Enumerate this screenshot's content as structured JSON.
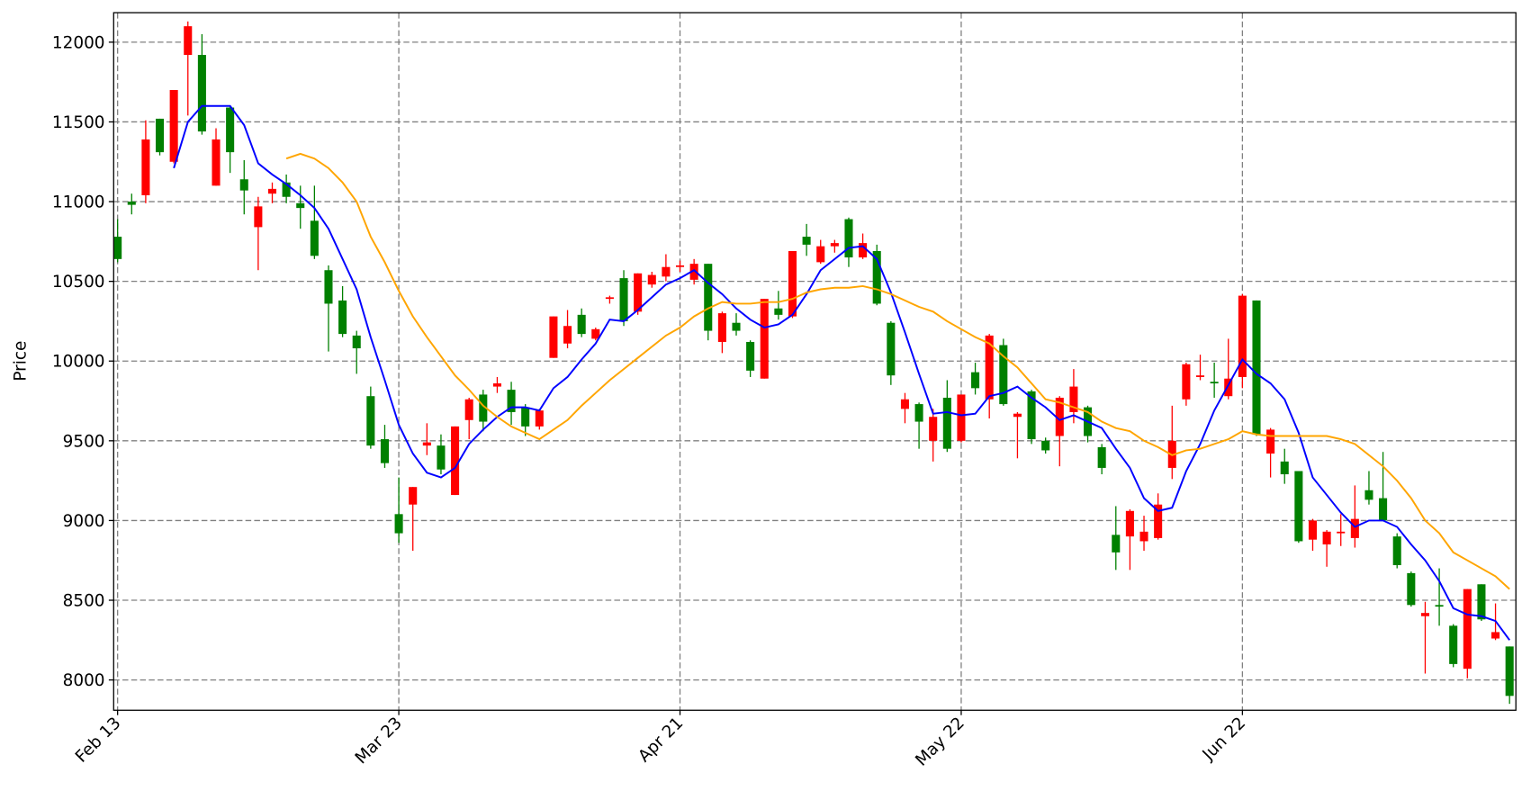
{
  "chart_data": {
    "type": "candlestick",
    "ylabel": "Price",
    "categories": [
      "Feb 13",
      null,
      null,
      null,
      null,
      null,
      null,
      null,
      null,
      null,
      null,
      null,
      null,
      null,
      null,
      null,
      null,
      null,
      null,
      null,
      "Mar 23",
      null,
      null,
      null,
      null,
      null,
      null,
      null,
      null,
      null,
      null,
      null,
      null,
      null,
      null,
      null,
      null,
      null,
      null,
      null,
      "Apr 21",
      null,
      null,
      null,
      null,
      null,
      null,
      null,
      null,
      null,
      null,
      null,
      null,
      null,
      null,
      null,
      null,
      null,
      null,
      null,
      "May 22",
      null,
      null,
      null,
      null,
      null,
      null,
      null,
      null,
      null,
      null,
      null,
      null,
      null,
      null,
      null,
      null,
      null,
      null,
      null,
      "Jun 22",
      null,
      null,
      null,
      null,
      null,
      null,
      null,
      null,
      null,
      null,
      null,
      null,
      null,
      null,
      null,
      null,
      null,
      null,
      null
    ],
    "open": [
      10640,
      10980,
      11390,
      11310,
      11700,
      12100,
      11440,
      11390,
      11310,
      11070,
      10970,
      11080,
      11030,
      10960,
      10660,
      10360,
      10170,
      10080,
      9470,
      9360,
      8920,
      9210,
      9490,
      9320,
      9590,
      9760,
      9620,
      9860,
      9680,
      9590,
      9690,
      10280,
      10220,
      10170,
      10200,
      10400,
      10250,
      10550,
      10540,
      10590,
      10600,
      10610,
      10190,
      10300,
      10190,
      9940,
      10390,
      10290,
      10690,
      10730,
      10720,
      10740,
      10650,
      10740,
      10360,
      9910,
      9760,
      9620,
      9650,
      9450,
      9790,
      9830,
      10160,
      9730,
      9670,
      9510,
      9440,
      9770,
      9840,
      9530,
      9330,
      8800,
      9060,
      8930,
      9100,
      9500,
      9980,
      9910,
      9860,
      9890,
      10410,
      9540,
      9570,
      9290,
      8870,
      9000,
      8930,
      8930,
      9010,
      9130,
      9000,
      8720,
      8470,
      8420,
      8460,
      8100,
      8570,
      8380,
      8300,
      7900
    ],
    "high": [
      10890,
      11050,
      11510,
      11520,
      11700,
      12130,
      12050,
      11460,
      11600,
      11260,
      11030,
      11120,
      11170,
      11100,
      11100,
      10600,
      10470,
      10190,
      9840,
      9600,
      9270,
      9210,
      9610,
      9540,
      9590,
      9770,
      9820,
      9900,
      9870,
      9730,
      9700,
      10280,
      10320,
      10330,
      10210,
      10410,
      10570,
      10550,
      10560,
      10670,
      10630,
      10640,
      10610,
      10310,
      10300,
      10130,
      10390,
      10440,
      10690,
      10860,
      10760,
      10760,
      10900,
      10800,
      10730,
      10250,
      9800,
      9740,
      9700,
      9880,
      9790,
      9990,
      10170,
      10140,
      9680,
      9820,
      9520,
      9780,
      9950,
      9720,
      9480,
      9090,
      9070,
      9030,
      9170,
      9720,
      9990,
      10040,
      9990,
      10140,
      10420,
      10380,
      9580,
      9450,
      9310,
      9010,
      8940,
      9040,
      9220,
      9310,
      9430,
      8920,
      8680,
      8490,
      8700,
      8350,
      8570,
      8600,
      8480,
      8210
    ],
    "low": [
      10620,
      10920,
      10990,
      11290,
      11240,
      11540,
      11420,
      11100,
      11180,
      10920,
      10570,
      10990,
      10990,
      10830,
      10640,
      10060,
      10150,
      9920,
      9450,
      9330,
      8860,
      8810,
      9410,
      9290,
      9160,
      9510,
      9560,
      9800,
      9600,
      9530,
      9570,
      10020,
      10080,
      10150,
      10130,
      10360,
      10220,
      10290,
      10460,
      10500,
      10560,
      10480,
      10130,
      10050,
      10160,
      9900,
      9890,
      10260,
      10270,
      10660,
      10610,
      10680,
      10590,
      10640,
      10350,
      9850,
      9610,
      9450,
      9370,
      9430,
      9490,
      9790,
      9640,
      9720,
      9390,
      9480,
      9420,
      9340,
      9610,
      9490,
      9290,
      8690,
      8690,
      8810,
      8880,
      9260,
      9720,
      9880,
      9770,
      9760,
      9830,
      9530,
      9270,
      9230,
      8860,
      8810,
      8710,
      8840,
      8830,
      9100,
      9000,
      8700,
      8460,
      8040,
      8340,
      8080,
      8010,
      8370,
      8250,
      7850
    ],
    "close": [
      10780,
      11000,
      11040,
      11520,
      11250,
      11920,
      11920,
      11100,
      11590,
      11140,
      10840,
      11050,
      11120,
      10990,
      10880,
      10570,
      10380,
      10160,
      9780,
      9510,
      9040,
      9100,
      9470,
      9470,
      9160,
      9630,
      9790,
      9840,
      9820,
      9710,
      9590,
      10020,
      10110,
      10290,
      10140,
      10390,
      10520,
      10310,
      10480,
      10530,
      10590,
      10510,
      10610,
      10120,
      10240,
      10120,
      9890,
      10330,
      10280,
      10780,
      10620,
      10720,
      10890,
      10650,
      10690,
      10240,
      9700,
      9730,
      9500,
      9770,
      9500,
      9930,
      9760,
      10100,
      9650,
      9810,
      9500,
      9530,
      9680,
      9710,
      9460,
      8910,
      8900,
      8870,
      8890,
      9330,
      9760,
      9900,
      9870,
      9780,
      9900,
      10380,
      9420,
      9370,
      9310,
      8880,
      8850,
      8920,
      8890,
      9190,
      9140,
      8900,
      8670,
      8400,
      8470,
      8340,
      8070,
      8600,
      8260,
      8210
    ],
    "up_color": "#008000",
    "down_color": "#ff0000",
    "lines": [
      {
        "color": "#0000ff",
        "values": [
          null,
          null,
          null,
          null,
          11210,
          11500,
          11600,
          11600,
          11600,
          11480,
          11240,
          11170,
          11110,
          11040,
          10960,
          10830,
          10640,
          10450,
          10150,
          9880,
          9600,
          9420,
          9300,
          9270,
          9330,
          9480,
          9570,
          9650,
          9710,
          9710,
          9690,
          9830,
          9900,
          10010,
          10110,
          10260,
          10250,
          10320,
          10400,
          10480,
          10520,
          10570,
          10490,
          10420,
          10330,
          10260,
          10210,
          10230,
          10290,
          10420,
          10570,
          10640,
          10710,
          10720,
          10640,
          10430,
          10180,
          9920,
          9670,
          9680,
          9660,
          9670,
          9780,
          9800,
          9840,
          9770,
          9710,
          9630,
          9660,
          9620,
          9580,
          9450,
          9330,
          9140,
          9060,
          9080,
          9310,
          9480,
          9690,
          9850,
          10010,
          9920,
          9860,
          9760,
          9550,
          9270,
          9160,
          9050,
          8960,
          9000,
          9000,
          8960,
          8850,
          8750,
          8620,
          8450,
          8410,
          8400,
          8370,
          8250
        ]
      },
      {
        "color": "#ffa500",
        "values": [
          null,
          null,
          null,
          null,
          null,
          null,
          null,
          null,
          null,
          null,
          null,
          null,
          11270,
          11300,
          11270,
          11210,
          11120,
          11000,
          10780,
          10620,
          10440,
          10280,
          10150,
          10030,
          9910,
          9820,
          9720,
          9650,
          9590,
          9550,
          9510,
          9570,
          9630,
          9720,
          9800,
          9880,
          9950,
          10020,
          10090,
          10160,
          10210,
          10280,
          10330,
          10370,
          10360,
          10360,
          10370,
          10370,
          10390,
          10430,
          10450,
          10460,
          10460,
          10470,
          10450,
          10420,
          10380,
          10340,
          10310,
          10250,
          10200,
          10150,
          10110,
          10030,
          9960,
          9860,
          9760,
          9740,
          9710,
          9680,
          9620,
          9580,
          9560,
          9500,
          9460,
          9410,
          9440,
          9450,
          9480,
          9510,
          9560,
          9540,
          9530,
          9530,
          9530,
          9530,
          9530,
          9510,
          9480,
          9410,
          9340,
          9250,
          9140,
          9000,
          8920,
          8800,
          8750,
          8700,
          8650,
          8570
        ]
      }
    ],
    "ylim": [
      7810,
      12185
    ],
    "yticks": [
      8000,
      8500,
      9000,
      9500,
      10000,
      10500,
      11000,
      11500,
      12000
    ],
    "grid": true
  }
}
